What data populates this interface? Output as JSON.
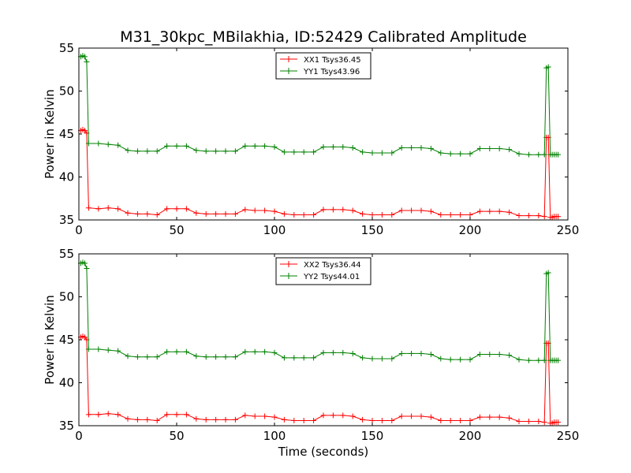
{
  "figure": {
    "title": "M31_30kpc_MBilakhia, ID:52429 Calibrated Amplitude"
  },
  "colors": {
    "red": "#ff0000",
    "green": "#008000",
    "axis": "#000000",
    "background": "#ffffff"
  },
  "chart_data": [
    {
      "type": "line",
      "title": "M31_30kpc_MBilakhia, ID:52429 Calibrated Amplitude",
      "xlabel": "",
      "ylabel": "Power in Kelvin",
      "xlim": [
        0,
        250
      ],
      "ylim": [
        35,
        55
      ],
      "xticks": [
        0,
        50,
        100,
        150,
        200,
        250
      ],
      "yticks": [
        35,
        40,
        45,
        50,
        55
      ],
      "grid": false,
      "legend_position": "top-center",
      "series": [
        {
          "name": "XX1 Tsys36.45",
          "color": "#ff0000",
          "marker": "+",
          "x": [
            1,
            2,
            3,
            4,
            5,
            10,
            15,
            20,
            25,
            30,
            35,
            40,
            45,
            50,
            55,
            60,
            65,
            70,
            75,
            80,
            85,
            90,
            95,
            100,
            105,
            110,
            115,
            120,
            125,
            130,
            135,
            140,
            145,
            150,
            155,
            160,
            165,
            170,
            175,
            180,
            185,
            190,
            195,
            200,
            205,
            210,
            215,
            220,
            225,
            230,
            235,
            238,
            239,
            240,
            241,
            242,
            243,
            244,
            245
          ],
          "values": [
            45.4,
            45.5,
            45.4,
            45.1,
            36.4,
            36.3,
            36.4,
            36.3,
            35.8,
            35.7,
            35.7,
            35.6,
            36.3,
            36.3,
            36.3,
            35.8,
            35.7,
            35.7,
            35.7,
            35.7,
            36.2,
            36.1,
            36.1,
            36.0,
            35.7,
            35.6,
            35.6,
            35.6,
            36.2,
            36.2,
            36.2,
            36.1,
            35.7,
            35.6,
            35.6,
            35.6,
            36.1,
            36.1,
            36.1,
            36.0,
            35.6,
            35.6,
            35.6,
            35.6,
            36.0,
            36.0,
            36.0,
            35.9,
            35.5,
            35.5,
            35.5,
            35.4,
            44.6,
            44.6,
            35.3,
            35.3,
            35.4,
            35.4,
            35.4
          ]
        },
        {
          "name": "YY1 Tsys43.96",
          "color": "#008000",
          "marker": "+",
          "x": [
            1,
            2,
            3,
            4,
            5,
            10,
            15,
            20,
            25,
            30,
            35,
            40,
            45,
            50,
            55,
            60,
            65,
            70,
            75,
            80,
            85,
            90,
            95,
            100,
            105,
            110,
            115,
            120,
            125,
            130,
            135,
            140,
            145,
            150,
            155,
            160,
            165,
            170,
            175,
            180,
            185,
            190,
            195,
            200,
            205,
            210,
            215,
            220,
            225,
            230,
            235,
            238,
            239,
            240,
            241,
            242,
            243,
            244,
            245
          ],
          "values": [
            54.0,
            54.1,
            54.0,
            53.4,
            43.9,
            43.9,
            43.8,
            43.7,
            43.1,
            43.0,
            43.0,
            43.0,
            43.6,
            43.6,
            43.6,
            43.1,
            43.0,
            43.0,
            43.0,
            43.0,
            43.6,
            43.6,
            43.6,
            43.5,
            42.9,
            42.9,
            42.9,
            42.9,
            43.5,
            43.5,
            43.5,
            43.4,
            42.9,
            42.8,
            42.8,
            42.8,
            43.4,
            43.4,
            43.4,
            43.3,
            42.8,
            42.7,
            42.7,
            42.7,
            43.3,
            43.3,
            43.3,
            43.2,
            42.7,
            42.6,
            42.6,
            42.6,
            52.7,
            52.8,
            42.6,
            42.6,
            42.6,
            42.6,
            42.6
          ]
        }
      ]
    },
    {
      "type": "line",
      "title": "",
      "xlabel": "Time (seconds)",
      "ylabel": "Power in Kelvin",
      "xlim": [
        0,
        250
      ],
      "ylim": [
        35,
        55
      ],
      "xticks": [
        0,
        50,
        100,
        150,
        200,
        250
      ],
      "yticks": [
        35,
        40,
        45,
        50,
        55
      ],
      "grid": false,
      "legend_position": "top-center",
      "series": [
        {
          "name": "XX2 Tsys36.44",
          "color": "#ff0000",
          "marker": "+",
          "x": [
            1,
            2,
            3,
            4,
            5,
            10,
            15,
            20,
            25,
            30,
            35,
            40,
            45,
            50,
            55,
            60,
            65,
            70,
            75,
            80,
            85,
            90,
            95,
            100,
            105,
            110,
            115,
            120,
            125,
            130,
            135,
            140,
            145,
            150,
            155,
            160,
            165,
            170,
            175,
            180,
            185,
            190,
            195,
            200,
            205,
            210,
            215,
            220,
            225,
            230,
            235,
            238,
            239,
            240,
            241,
            242,
            243,
            244,
            245
          ],
          "values": [
            45.3,
            45.4,
            45.3,
            45.0,
            36.3,
            36.3,
            36.4,
            36.3,
            35.8,
            35.7,
            35.7,
            35.6,
            36.3,
            36.3,
            36.3,
            35.8,
            35.7,
            35.7,
            35.7,
            35.7,
            36.2,
            36.1,
            36.1,
            36.0,
            35.7,
            35.6,
            35.6,
            35.6,
            36.2,
            36.2,
            36.2,
            36.1,
            35.7,
            35.6,
            35.6,
            35.6,
            36.1,
            36.1,
            36.1,
            36.0,
            35.6,
            35.6,
            35.6,
            35.6,
            36.0,
            36.0,
            36.0,
            35.9,
            35.5,
            35.5,
            35.5,
            35.4,
            44.6,
            44.6,
            35.3,
            35.3,
            35.4,
            35.4,
            35.4
          ]
        },
        {
          "name": "YY2 Tsys44.01",
          "color": "#008000",
          "marker": "+",
          "x": [
            1,
            2,
            3,
            4,
            5,
            10,
            15,
            20,
            25,
            30,
            35,
            40,
            45,
            50,
            55,
            60,
            65,
            70,
            75,
            80,
            85,
            90,
            95,
            100,
            105,
            110,
            115,
            120,
            125,
            130,
            135,
            140,
            145,
            150,
            155,
            160,
            165,
            170,
            175,
            180,
            185,
            190,
            195,
            200,
            205,
            210,
            215,
            220,
            225,
            230,
            235,
            238,
            239,
            240,
            241,
            242,
            243,
            244,
            245
          ],
          "values": [
            53.9,
            54.0,
            53.9,
            53.3,
            43.9,
            43.9,
            43.8,
            43.7,
            43.1,
            43.0,
            43.0,
            43.0,
            43.6,
            43.6,
            43.6,
            43.1,
            43.0,
            43.0,
            43.0,
            43.0,
            43.6,
            43.6,
            43.6,
            43.5,
            42.9,
            42.9,
            42.9,
            42.9,
            43.5,
            43.5,
            43.5,
            43.4,
            42.9,
            42.8,
            42.8,
            42.8,
            43.4,
            43.4,
            43.4,
            43.3,
            42.8,
            42.7,
            42.7,
            42.7,
            43.3,
            43.3,
            43.3,
            43.2,
            42.7,
            42.6,
            42.6,
            42.6,
            52.7,
            52.8,
            42.6,
            42.6,
            42.6,
            42.6,
            42.6
          ]
        }
      ]
    }
  ]
}
